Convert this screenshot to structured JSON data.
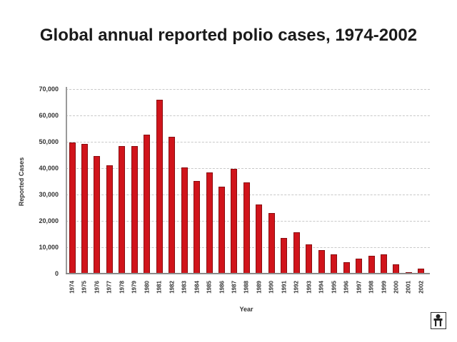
{
  "chart_data": {
    "type": "bar",
    "title": "Global annual reported polio cases, 1974-2002",
    "xlabel": "Year",
    "ylabel": "Reported Cases",
    "ylim": [
      0,
      70000
    ],
    "yticks": [
      "0",
      "10,000",
      "20,000",
      "30,000",
      "40,000",
      "50,000",
      "60,000",
      "70,000"
    ],
    "ytick_values": [
      0,
      10000,
      20000,
      30000,
      40000,
      50000,
      60000,
      70000
    ],
    "grid": true,
    "legend": null,
    "bar_color": "#d0141b",
    "categories": [
      "1974",
      "1975",
      "1976",
      "1977",
      "1978",
      "1979",
      "1980",
      "1981",
      "1982",
      "1983",
      "1984",
      "1985",
      "1986",
      "1987",
      "1988",
      "1989",
      "1990",
      "1991",
      "1992",
      "1993",
      "1994",
      "1995",
      "1996",
      "1997",
      "1998",
      "1999",
      "2000",
      "2001",
      "2002"
    ],
    "values": [
      49600,
      49300,
      44700,
      41100,
      48300,
      48300,
      52700,
      65900,
      51800,
      40200,
      35200,
      38500,
      33000,
      39800,
      34600,
      26200,
      23100,
      13400,
      15700,
      11000,
      9000,
      7400,
      4300,
      5600,
      6700,
      7400,
      3400,
      500,
      1900
    ]
  },
  "footer": {
    "logo_icon": "who-logo-icon"
  }
}
